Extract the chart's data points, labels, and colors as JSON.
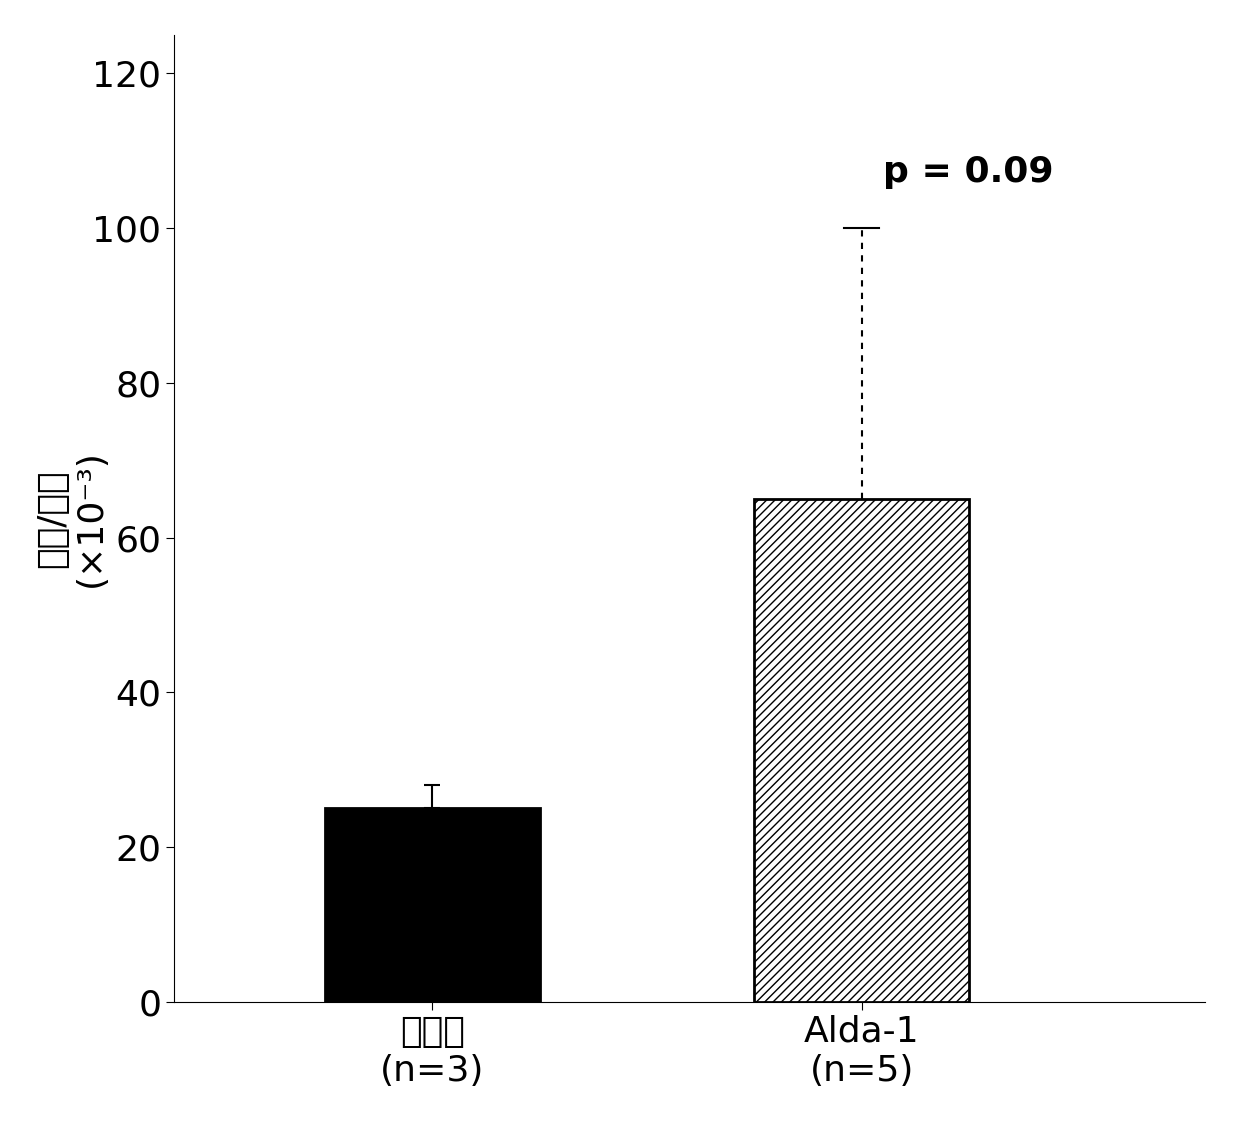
{
  "categories": [
    "媒介物\n(n=3)",
    "Alda-1\n(n=5)"
  ],
  "values": [
    25,
    65
  ],
  "error_up_1": 3,
  "error_up_2": 35,
  "bar_colors": [
    "#000000",
    "#ffffff"
  ],
  "bar_edgecolors": [
    "#000000",
    "#000000"
  ],
  "hatch_patterns": [
    "",
    "////"
  ],
  "ylim": [
    0,
    125
  ],
  "yticks": [
    0,
    20,
    40,
    60,
    80,
    100,
    120
  ],
  "ylabel_line1": "细胞/腾部",
  "ylabel_line2": "(×10⁻³)",
  "p_text": "p = 0.09",
  "background_color": "#ffffff",
  "label_fontsize": 26,
  "tick_fontsize": 26,
  "bar_width": 0.5,
  "bar_positions": [
    1,
    2
  ]
}
